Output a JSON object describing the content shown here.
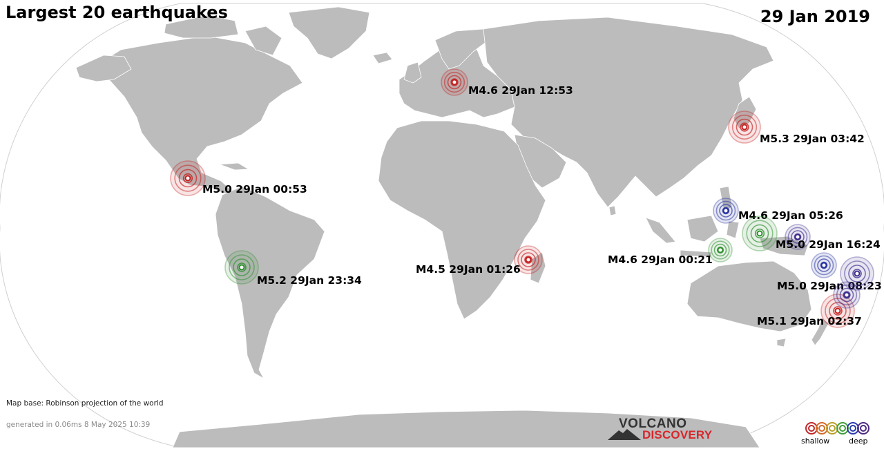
{
  "map": {
    "title": "Largest 20 earthquakes",
    "date": "29 Jan 2019",
    "credit": "Map base: Robinson projection of the world",
    "generated": "generated in 0.06ms  8 May 2025 10:39"
  },
  "logo": {
    "line1": "VOLCANO",
    "line2": "DISCOVERY"
  },
  "legend": {
    "shallow_label": "shallow",
    "deep_label": "deep",
    "colors": [
      "#c0282b",
      "#d46a2a",
      "#b8a02a",
      "#3f9e3a",
      "#2a3cb0",
      "#4d2a80"
    ]
  },
  "depth_colors": {
    "red": "#c41e1e",
    "green": "#2e8e2e",
    "blue": "#25309e",
    "purple": "#3c2a8a"
  },
  "quakes": [
    {
      "label": "M4.6 29Jan 12:53",
      "depth": "red"
    },
    {
      "label": "M5.3 29Jan 03:42",
      "depth": "red"
    },
    {
      "label": "M5.0 29Jan 00:53",
      "depth": "red"
    },
    {
      "label": "M4.6 29Jan 05:26",
      "depth": "blue"
    },
    {
      "label": "M5.0 29Jan 16:24",
      "depth": "purple"
    },
    {
      "label": "M4.6 29Jan 00:21",
      "depth": "green"
    },
    {
      "label": "M5.2 29Jan 23:34",
      "depth": "green"
    },
    {
      "label": "M4.5 29Jan 01:26",
      "depth": "red"
    },
    {
      "label": "M5.0 29Jan 08:23",
      "depth": "blue"
    },
    {
      "label": "M5.1 29Jan 02:37",
      "depth": "red"
    },
    {
      "label": "",
      "depth": "green"
    },
    {
      "label": "",
      "depth": "purple"
    },
    {
      "label": "",
      "depth": "purple"
    }
  ]
}
